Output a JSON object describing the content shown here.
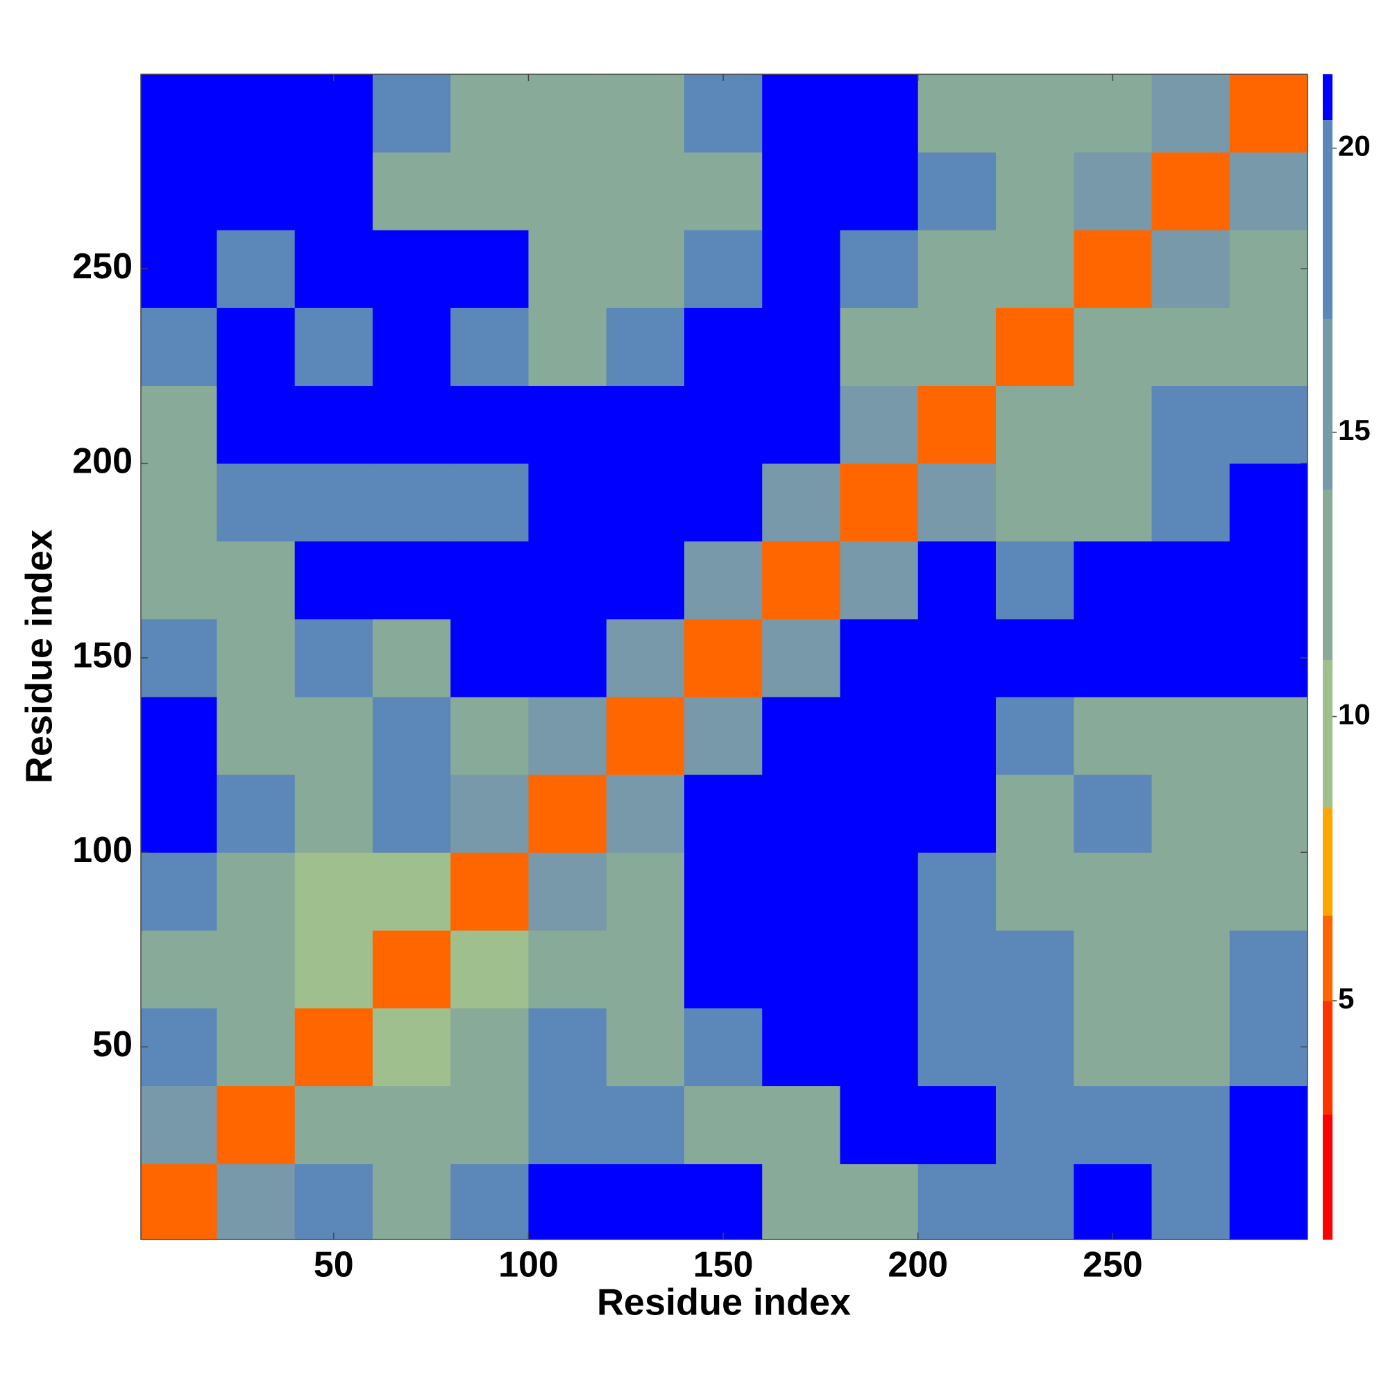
{
  "chart_data": {
    "type": "heatmap",
    "x_label": "Residue index",
    "y_label": "Residue index",
    "xbins": [
      0,
      20,
      40,
      60,
      80,
      100,
      120,
      140,
      160,
      180,
      200,
      220,
      240,
      260,
      280,
      300
    ],
    "ybins": [
      0,
      20,
      40,
      60,
      80,
      100,
      120,
      140,
      160,
      180,
      200,
      220,
      240,
      260,
      280,
      300
    ],
    "values": [
      [
        6,
        14,
        17,
        13,
        17,
        21,
        21,
        21,
        13,
        13,
        17,
        17,
        21,
        17,
        21
      ],
      [
        14,
        6,
        13,
        13,
        13,
        17,
        17,
        13,
        13,
        21,
        21,
        17,
        17,
        17,
        21
      ],
      [
        17,
        13,
        6,
        9,
        13,
        17,
        13,
        17,
        21,
        21,
        17,
        17,
        13,
        13,
        17
      ],
      [
        13,
        13,
        9,
        6,
        9,
        13,
        13,
        21,
        21,
        21,
        17,
        17,
        13,
        13,
        17
      ],
      [
        17,
        13,
        9,
        9,
        6,
        14,
        13,
        21,
        21,
        21,
        17,
        13,
        13,
        13,
        13
      ],
      [
        21,
        17,
        13,
        17,
        14,
        6,
        14,
        21,
        21,
        21,
        21,
        13,
        17,
        13,
        13
      ],
      [
        21,
        13,
        13,
        17,
        13,
        14,
        6,
        14,
        21,
        21,
        21,
        17,
        13,
        13,
        13
      ],
      [
        17,
        13,
        17,
        13,
        21,
        21,
        14,
        6,
        14,
        21,
        21,
        21,
        21,
        21,
        21
      ],
      [
        13,
        13,
        21,
        21,
        21,
        21,
        21,
        14,
        6,
        14,
        21,
        17,
        21,
        21,
        21
      ],
      [
        13,
        17,
        17,
        17,
        17,
        21,
        21,
        21,
        14,
        6,
        14,
        13,
        13,
        17,
        21
      ],
      [
        13,
        21,
        21,
        21,
        21,
        21,
        21,
        21,
        21,
        14,
        6,
        13,
        13,
        17,
        17
      ],
      [
        17,
        21,
        17,
        21,
        17,
        13,
        17,
        21,
        21,
        13,
        13,
        6,
        13,
        13,
        13
      ],
      [
        21,
        17,
        21,
        21,
        21,
        13,
        13,
        17,
        21,
        17,
        13,
        13,
        6,
        14,
        13
      ],
      [
        21,
        21,
        21,
        13,
        13,
        13,
        13,
        13,
        21,
        21,
        17,
        13,
        14,
        6,
        14
      ],
      [
        21,
        21,
        21,
        17,
        13,
        13,
        13,
        17,
        21,
        21,
        13,
        13,
        13,
        14,
        6
      ]
    ],
    "xlim": [
      0.5,
      300
    ],
    "ylim": [
      0.5,
      300
    ],
    "xticks": [
      50,
      100,
      150,
      200,
      250
    ],
    "yticks": [
      50,
      100,
      150,
      200,
      250
    ],
    "clim": [
      0.8,
      21.3
    ],
    "cticks": [
      5,
      10,
      15,
      20
    ],
    "color_levels": [
      0.8,
      3,
      5,
      6.5,
      8.4,
      11,
      14,
      17,
      20.5,
      21.3
    ],
    "colors": [
      "#ff0000",
      "#ff3300",
      "#ff6600",
      "#ffa500",
      "#9fbf8f",
      "#88aa99",
      "#7799aa",
      "#5b88b8",
      "#0000ff"
    ]
  }
}
